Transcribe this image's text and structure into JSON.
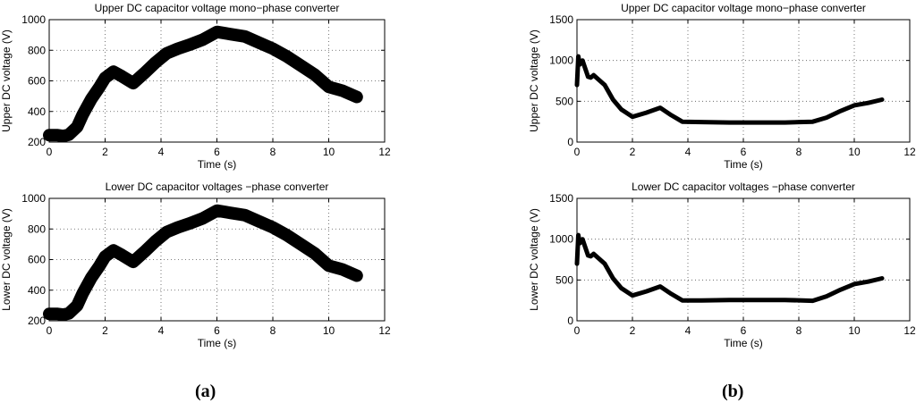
{
  "captions": {
    "left": "(a)",
    "right": "(b)"
  },
  "chart_data": [
    {
      "type": "line",
      "title": "Upper DC capacitor voltage mono−phase converter",
      "xlabel": "Time (s)",
      "ylabel": "Upper DC voltage (V)",
      "xlim": [
        0,
        12
      ],
      "ylim": [
        200,
        1000
      ],
      "xticks": [
        0,
        2,
        4,
        6,
        8,
        10,
        12
      ],
      "yticks": [
        200,
        400,
        600,
        800,
        1000
      ],
      "grid": true,
      "series": [
        {
          "x": [
            0,
            0.3,
            0.5,
            0.7,
            1.0,
            1.2,
            1.5,
            1.8,
            2.0,
            2.3,
            2.6,
            3.0,
            3.4,
            3.8,
            4.2,
            4.6,
            5.0,
            5.5,
            6.0,
            6.5,
            7.0,
            7.5,
            8.0,
            8.5,
            9.0,
            9.5,
            10.0,
            10.5,
            11.0
          ],
          "y": [
            245,
            245,
            240,
            248,
            300,
            380,
            480,
            560,
            620,
            660,
            630,
            585,
            650,
            720,
            780,
            810,
            835,
            870,
            920,
            905,
            890,
            850,
            810,
            760,
            700,
            640,
            560,
            535,
            495
          ],
          "band": 14
        }
      ]
    },
    {
      "type": "line",
      "title": "Lower DC capacitor voltages −phase converter",
      "xlabel": "Time (s)",
      "ylabel": "Lower DC voltage (V)",
      "xlim": [
        0,
        12
      ],
      "ylim": [
        200,
        1000
      ],
      "xticks": [
        0,
        2,
        4,
        6,
        8,
        10,
        12
      ],
      "yticks": [
        200,
        400,
        600,
        800,
        1000
      ],
      "grid": true,
      "series": [
        {
          "x": [
            0,
            0.3,
            0.5,
            0.7,
            1.0,
            1.2,
            1.5,
            1.8,
            2.0,
            2.3,
            2.6,
            3.0,
            3.4,
            3.8,
            4.2,
            4.6,
            5.0,
            5.5,
            6.0,
            6.5,
            7.0,
            7.5,
            8.0,
            8.5,
            9.0,
            9.5,
            10.0,
            10.5,
            11.0
          ],
          "y": [
            245,
            245,
            240,
            248,
            300,
            380,
            480,
            560,
            620,
            660,
            630,
            585,
            650,
            720,
            780,
            810,
            835,
            870,
            920,
            905,
            890,
            850,
            810,
            760,
            700,
            640,
            560,
            535,
            495
          ],
          "band": 14
        }
      ]
    },
    {
      "type": "line",
      "title": "Upper DC capacitor voltage mono−phase converter",
      "xlabel": "Time (s)",
      "ylabel": "Upper DC voltage (V)",
      "xlim": [
        0,
        12
      ],
      "ylim": [
        0,
        1500
      ],
      "xticks": [
        0,
        2,
        4,
        6,
        8,
        10,
        12
      ],
      "yticks": [
        0,
        500,
        1000,
        1500
      ],
      "grid": true,
      "series": [
        {
          "x": [
            0,
            0.05,
            0.1,
            0.2,
            0.3,
            0.4,
            0.5,
            0.6,
            0.8,
            1.0,
            1.3,
            1.6,
            2.0,
            2.5,
            3.0,
            3.4,
            3.8,
            4.5,
            5.5,
            6.5,
            7.5,
            8.5,
            9.0,
            9.5,
            10.0,
            10.5,
            11.0
          ],
          "y": [
            700,
            1050,
            950,
            1000,
            900,
            800,
            790,
            820,
            760,
            700,
            520,
            400,
            310,
            360,
            420,
            330,
            250,
            245,
            240,
            240,
            240,
            250,
            300,
            380,
            450,
            480,
            520
          ],
          "band": 5
        }
      ]
    },
    {
      "type": "line",
      "title": "Lower DC capacitor voltages −phase converter",
      "xlabel": "Time (s)",
      "ylabel": "Lower DC voltage (V)",
      "xlim": [
        0,
        12
      ],
      "ylim": [
        0,
        1500
      ],
      "xticks": [
        0,
        2,
        4,
        6,
        8,
        10,
        12
      ],
      "yticks": [
        0,
        500,
        1000,
        1500
      ],
      "grid": true,
      "series": [
        {
          "x": [
            0,
            0.05,
            0.1,
            0.2,
            0.3,
            0.4,
            0.5,
            0.6,
            0.8,
            1.0,
            1.3,
            1.6,
            2.0,
            2.5,
            3.0,
            3.4,
            3.8,
            4.5,
            5.5,
            6.5,
            7.5,
            8.5,
            9.0,
            9.5,
            10.0,
            10.5,
            11.0
          ],
          "y": [
            700,
            1050,
            950,
            1000,
            900,
            800,
            790,
            820,
            760,
            700,
            520,
            400,
            310,
            360,
            420,
            330,
            250,
            250,
            255,
            255,
            255,
            245,
            300,
            380,
            450,
            480,
            520
          ],
          "band": 5
        }
      ]
    }
  ]
}
